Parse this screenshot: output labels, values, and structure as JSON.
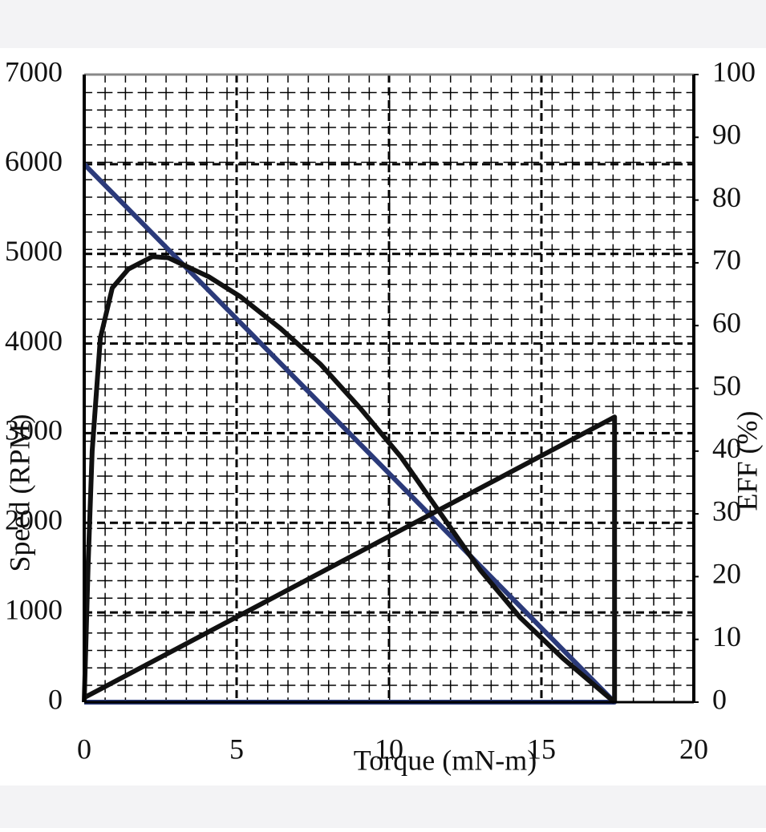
{
  "chart_data": {
    "type": "line",
    "x_label": "Torque (mN-m)",
    "y_label": "Speed (RPM)",
    "y2_label": "EFF (%)",
    "xlim": [
      0,
      20
    ],
    "xticks": [
      0,
      5,
      10,
      15,
      20
    ],
    "ylim": [
      0,
      7000
    ],
    "yticks": [
      0,
      1000,
      2000,
      3000,
      4000,
      5000,
      6000,
      7000
    ],
    "y2lim": [
      0,
      100
    ],
    "y2ticks": [
      0,
      10,
      20,
      30,
      40,
      50,
      60,
      70,
      80,
      90,
      100
    ],
    "grid": true,
    "series": [
      {
        "color": "#2b3a7a",
        "x": [
          0,
          17.4,
          0
        ],
        "values": [
          6000,
          0,
          0
        ]
      },
      {
        "color": "#111111",
        "x": [
          0,
          17.4,
          17.4
        ],
        "values": [
          50,
          3180,
          0
        ]
      },
      {
        "color": "#111111",
        "axis": "y2",
        "x": [
          0,
          0.13,
          0.26,
          0.53,
          0.92,
          1.45,
          2.24,
          2.76,
          4.08,
          5.13,
          6.45,
          7.76,
          9.08,
          10.4,
          11.7,
          13,
          14.3,
          15.7,
          17.2,
          17.4
        ],
        "values": [
          0,
          22,
          40,
          58,
          66,
          69,
          71,
          70.8,
          67.8,
          64.6,
          59.5,
          53.8,
          46.7,
          39,
          30,
          21,
          13.5,
          7,
          0.8,
          0
        ]
      }
    ]
  }
}
